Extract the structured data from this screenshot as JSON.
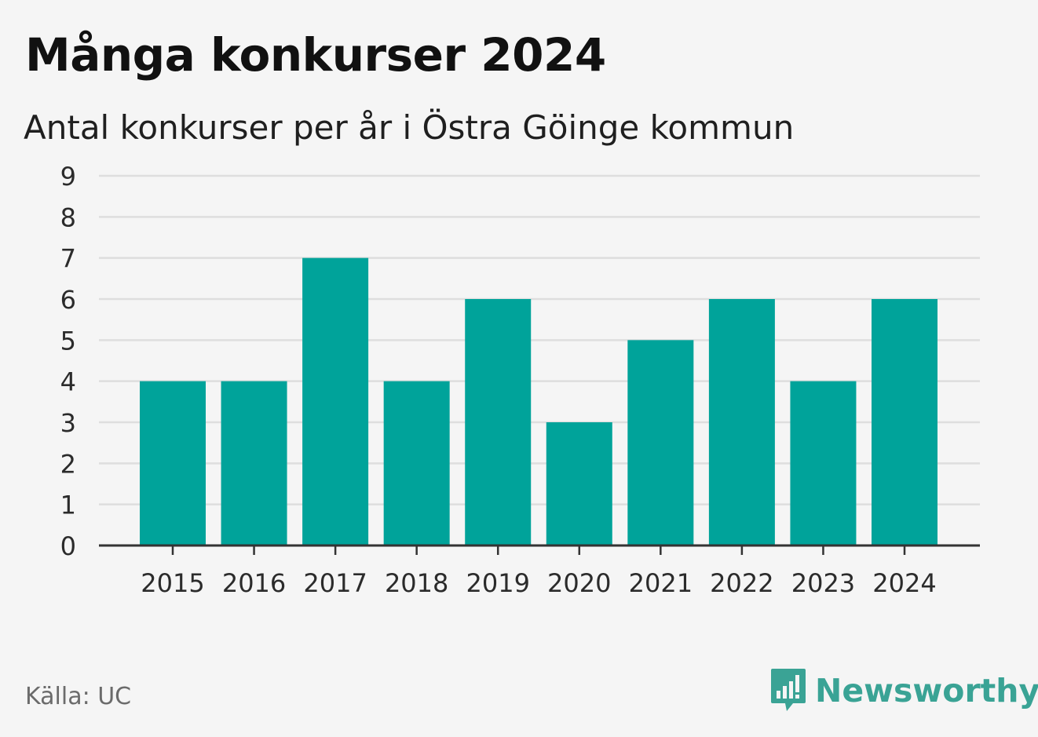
{
  "chart_data": {
    "type": "bar",
    "title": "Många konkurser 2024",
    "subtitle": "Antal konkurser per år i Östra Göinge kommun",
    "xlabel": "",
    "ylabel": "",
    "categories": [
      "2015",
      "2016",
      "2017",
      "2018",
      "2019",
      "2020",
      "2021",
      "2022",
      "2023",
      "2024"
    ],
    "values": [
      4,
      4,
      7,
      4,
      6,
      3,
      5,
      6,
      4,
      6
    ],
    "ylim": [
      0,
      9
    ],
    "yticks": [
      "0",
      "1",
      "2",
      "3",
      "4",
      "5",
      "6",
      "7",
      "8",
      "9"
    ],
    "grid": true,
    "bar_color": "#00a39a",
    "grid_color": "#dedede",
    "axis_color": "#333333"
  },
  "footer": {
    "source": "Källa: UC",
    "brand": "Newsworthy",
    "brand_icon": "newsworthy-logo-icon",
    "brand_color": "#3aa395"
  }
}
